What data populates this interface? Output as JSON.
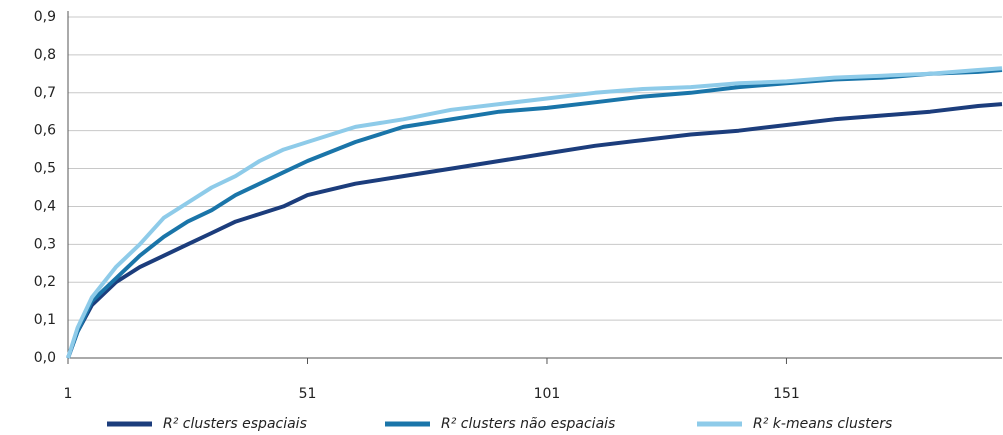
{
  "chart_data": {
    "type": "line",
    "x": [
      1,
      3,
      6,
      11,
      16,
      21,
      26,
      31,
      36,
      41,
      46,
      51,
      61,
      71,
      81,
      91,
      101,
      111,
      121,
      131,
      141,
      151,
      161,
      171,
      181,
      191,
      196
    ],
    "series": [
      {
        "name": "R² clusters espaciais",
        "color": "#1c3d7c",
        "values": [
          0,
          0.07,
          0.14,
          0.2,
          0.24,
          0.27,
          0.3,
          0.33,
          0.36,
          0.38,
          0.4,
          0.43,
          0.46,
          0.48,
          0.5,
          0.52,
          0.54,
          0.56,
          0.575,
          0.59,
          0.6,
          0.615,
          0.63,
          0.64,
          0.65,
          0.665,
          0.67
        ]
      },
      {
        "name": "R² clusters não espaciais",
        "color": "#1a75a9",
        "values": [
          0,
          0.07,
          0.15,
          0.21,
          0.27,
          0.32,
          0.36,
          0.39,
          0.43,
          0.46,
          0.49,
          0.52,
          0.57,
          0.61,
          0.63,
          0.65,
          0.66,
          0.675,
          0.69,
          0.7,
          0.715,
          0.725,
          0.735,
          0.74,
          0.75,
          0.755,
          0.76
        ]
      },
      {
        "name": "R² k-means clusters",
        "color": "#8ecbe9",
        "values": [
          0,
          0.08,
          0.16,
          0.24,
          0.3,
          0.37,
          0.41,
          0.45,
          0.48,
          0.52,
          0.55,
          0.57,
          0.61,
          0.63,
          0.655,
          0.67,
          0.685,
          0.7,
          0.71,
          0.715,
          0.725,
          0.73,
          0.74,
          0.745,
          0.75,
          0.76,
          0.765
        ]
      }
    ],
    "xlim": [
      1,
      196
    ],
    "xticks": [
      1,
      51,
      101,
      151
    ],
    "ylim": [
      0,
      0.9
    ],
    "yticks": [
      {
        "value": 0,
        "label": "0,0"
      },
      {
        "value": 0.1,
        "label": "0,1"
      },
      {
        "value": 0.2,
        "label": "0,2"
      },
      {
        "value": 0.3,
        "label": "0,3"
      },
      {
        "value": 0.4,
        "label": "0,4"
      },
      {
        "value": 0.5,
        "label": "0,5"
      },
      {
        "value": 0.6,
        "label": "0,6"
      },
      {
        "value": 0.7,
        "label": "0,7"
      },
      {
        "value": 0.8,
        "label": "0,8"
      },
      {
        "value": 0.9,
        "label": "0,9"
      }
    ],
    "grid": true
  }
}
